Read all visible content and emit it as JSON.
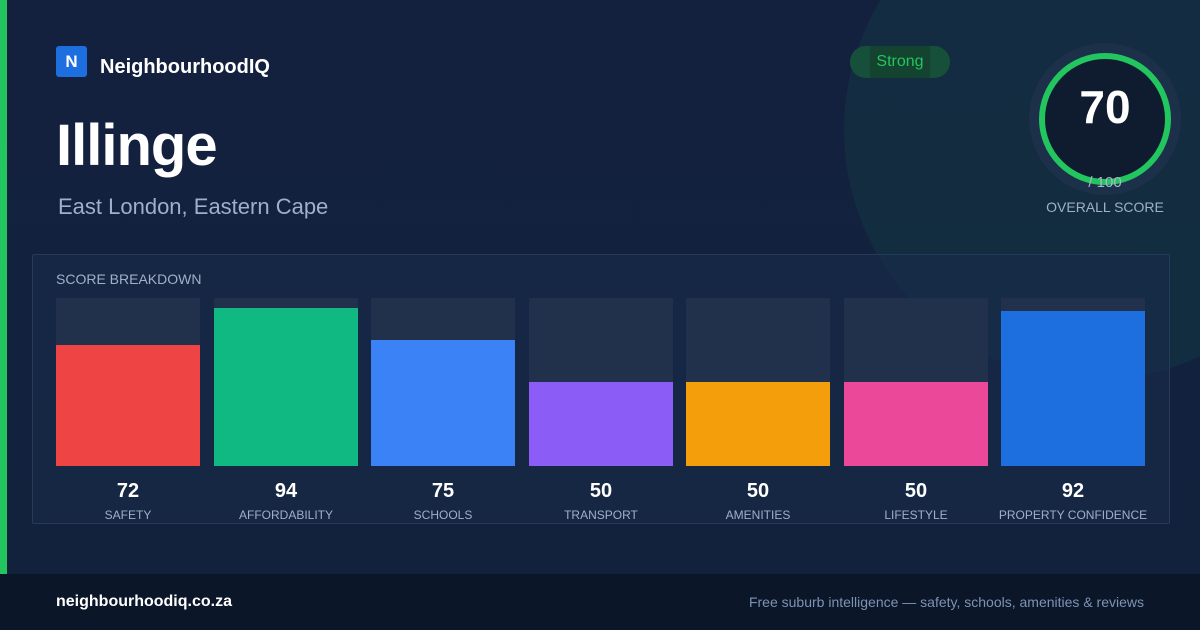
{
  "brand": {
    "logo_letter": "N",
    "name": "NeighbourhoodIQ"
  },
  "suburb": {
    "name": "Illinge",
    "location": "East London, Eastern Cape"
  },
  "rating_badge": "Strong",
  "overall": {
    "score": "70",
    "max_label": "/ 100",
    "label": "OVERALL SCORE",
    "score_fraction": 0.7
  },
  "breakdown_title": "SCORE BREAKDOWN",
  "chart_data": {
    "type": "bar",
    "categories": [
      "SAFETY",
      "AFFORDABILITY",
      "SCHOOLS",
      "TRANSPORT",
      "AMENITIES",
      "LIFESTYLE",
      "PROPERTY CONFIDENCE"
    ],
    "values": [
      72,
      94,
      75,
      50,
      50,
      50,
      92
    ],
    "value_labels": [
      "72",
      "94",
      "75",
      "50",
      "50",
      "50",
      "92"
    ],
    "ylim": [
      0,
      100
    ],
    "colors": [
      "#ef4444",
      "#10b981",
      "#3b82f6",
      "#8b5cf6",
      "#f59e0b",
      "#ec4899",
      "#1d6fe0"
    ]
  },
  "colors": {
    "accent": "#22c55e",
    "background": "#13213f",
    "footer": "#0b1628",
    "logo": "#1d6fe0"
  },
  "footer": {
    "url": "neighbourhoodiq.co.za",
    "tagline": "Free suburb intelligence — safety, schools, amenities & reviews"
  }
}
